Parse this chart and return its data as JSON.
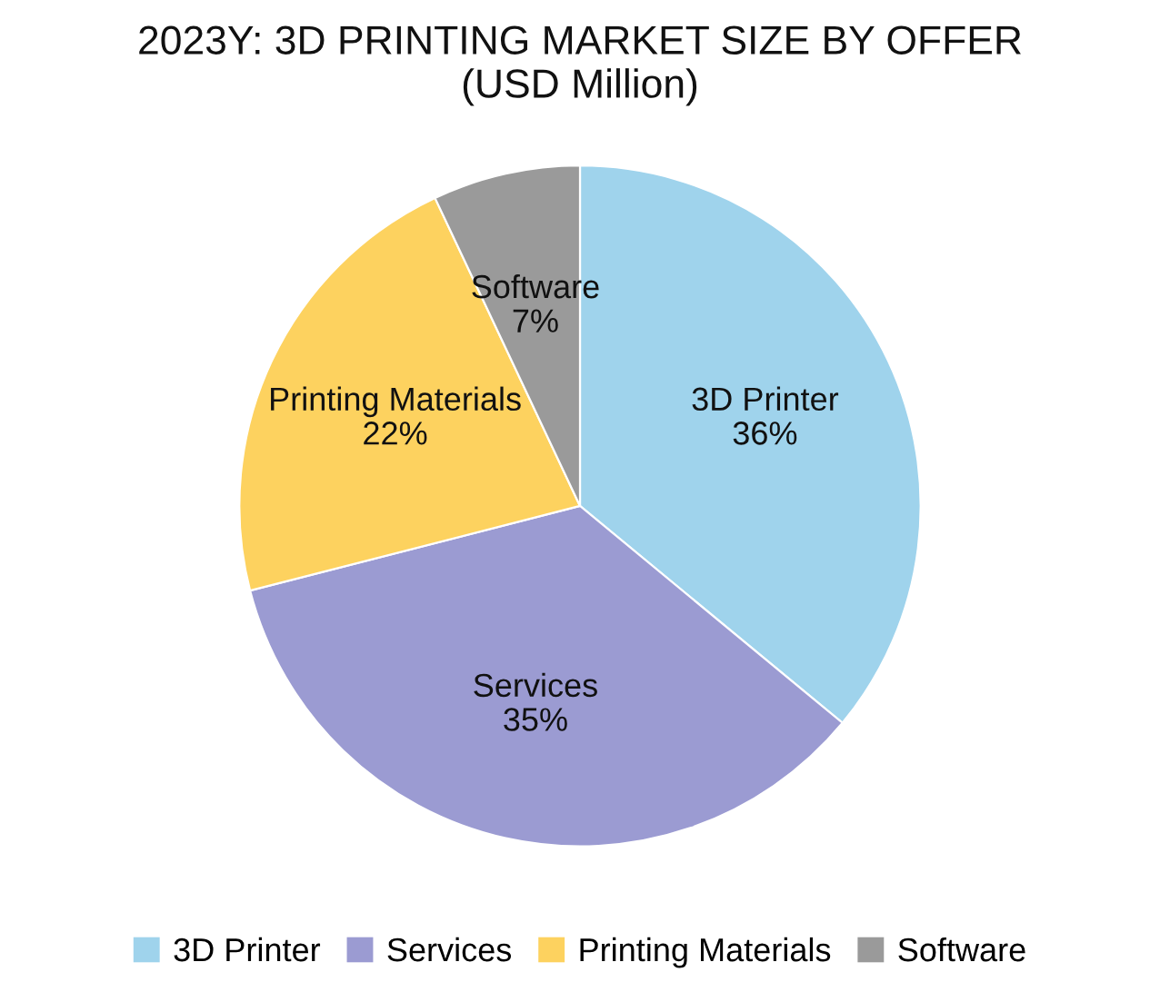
{
  "chart_data": {
    "type": "pie",
    "title": "2023Y: 3D PRINTING MARKET SIZE BY OFFER\n(USD Million)",
    "categories": [
      "3D Printer",
      "Services",
      "Printing Materials",
      "Software"
    ],
    "values": [
      36,
      35,
      22,
      7
    ],
    "value_labels": [
      "36%",
      "35%",
      "22%",
      "7%"
    ],
    "colors": [
      "#9fd3ec",
      "#9b9bd2",
      "#fdd25f",
      "#9a9a9a"
    ],
    "legend": "bottom"
  }
}
